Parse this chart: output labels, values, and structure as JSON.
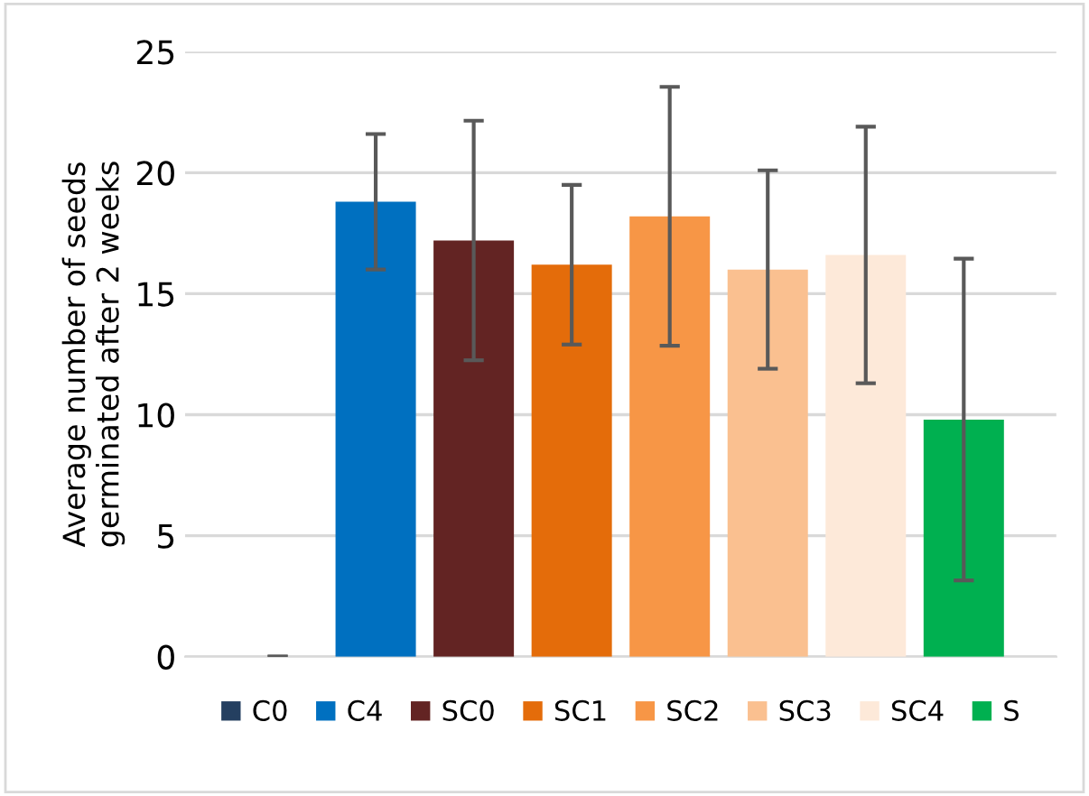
{
  "chart_data": {
    "type": "bar",
    "ylabel": "Average number of seeds\ngerminated after 2 weeks",
    "categories": [
      null
    ],
    "series": [
      {
        "name": "C0",
        "color": "#243f60",
        "values": [
          0
        ],
        "errors": [
          0
        ]
      },
      {
        "name": "C4",
        "color": "#0070c0",
        "values": [
          18.8
        ],
        "errors": [
          2.8
        ]
      },
      {
        "name": "SC0",
        "color": "#632423",
        "values": [
          17.2
        ],
        "errors": [
          4.95
        ]
      },
      {
        "name": "SC1",
        "color": "#e46c0a",
        "values": [
          16.2
        ],
        "errors": [
          3.3
        ]
      },
      {
        "name": "SC2",
        "color": "#f79646",
        "values": [
          18.2
        ],
        "errors": [
          5.35
        ]
      },
      {
        "name": "SC3",
        "color": "#fac090",
        "values": [
          16.0
        ],
        "errors": [
          4.1
        ]
      },
      {
        "name": "SC4",
        "color": "#fde9d9",
        "values": [
          16.6
        ],
        "errors": [
          5.3
        ]
      },
      {
        "name": "S",
        "color": "#00b050",
        "values": [
          9.8
        ],
        "errors": [
          6.65
        ]
      }
    ],
    "ylim": [
      0,
      25
    ],
    "yticks": [
      0,
      5,
      10,
      15,
      20,
      25
    ],
    "grid": "y",
    "legend": "bottom"
  }
}
